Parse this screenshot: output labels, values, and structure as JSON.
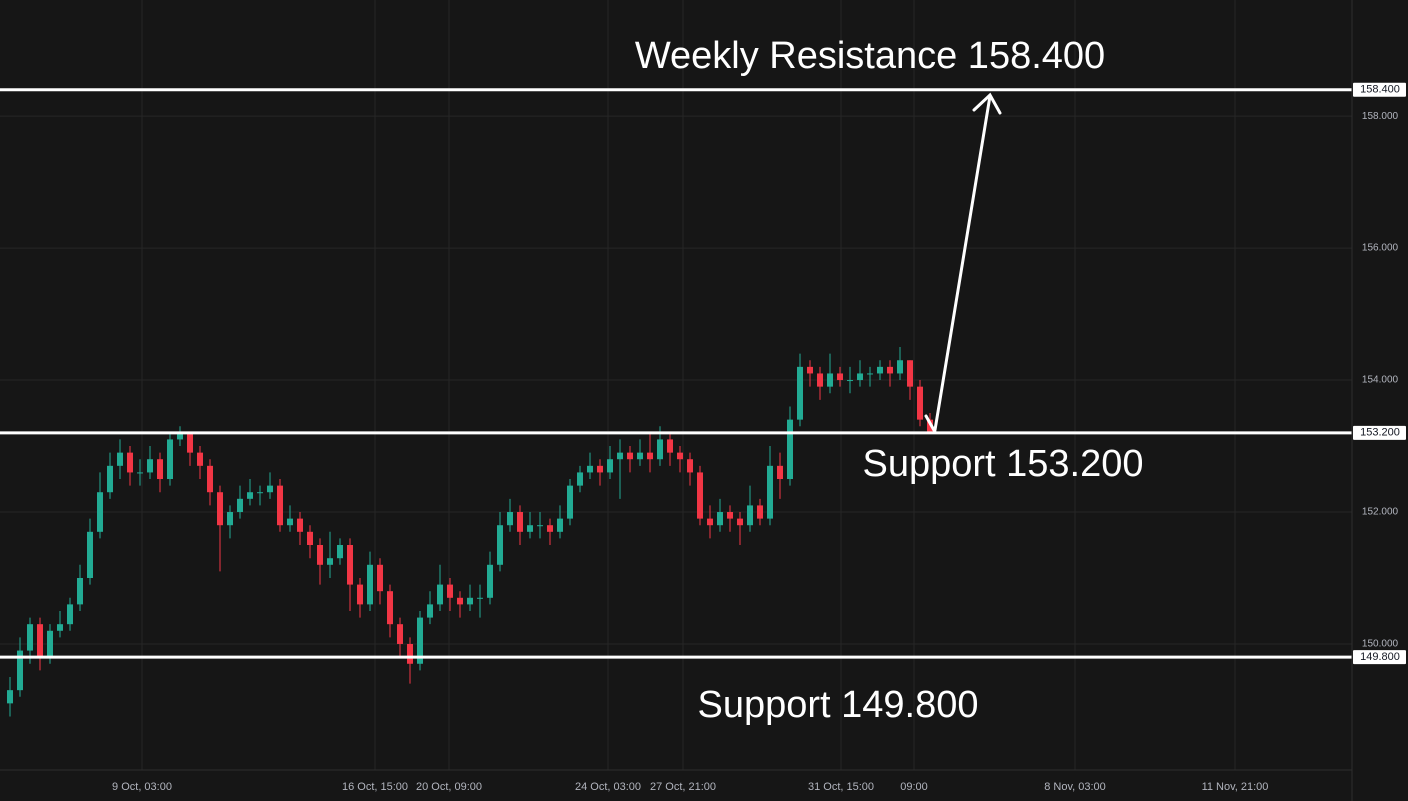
{
  "chart_data": {
    "type": "candlestick",
    "open": [
      149.1,
      149.3,
      149.9,
      150.3,
      149.8,
      150.2,
      150.3,
      150.6,
      151.0,
      151.7,
      152.3,
      152.7,
      152.9,
      152.6,
      152.6,
      152.8,
      152.5,
      153.1,
      153.2,
      152.9,
      152.7,
      152.3,
      151.8,
      152.0,
      152.2,
      152.3,
      152.3,
      152.4,
      151.8,
      151.9,
      151.7,
      151.5,
      151.2,
      151.3,
      151.5,
      150.9,
      150.6,
      151.2,
      150.8,
      150.3,
      150.0,
      149.7,
      150.4,
      150.6,
      150.9,
      150.7,
      150.6,
      150.7,
      150.7,
      151.2,
      151.8,
      152.0,
      151.7,
      151.8,
      151.8,
      151.7,
      151.9,
      152.4,
      152.6,
      152.7,
      152.6,
      152.8,
      152.9,
      152.8,
      152.9,
      152.8,
      153.1,
      152.9,
      152.8,
      152.6,
      151.9,
      151.8,
      152.0,
      151.9,
      151.8,
      152.1,
      151.9,
      152.7,
      152.5,
      153.4,
      154.2,
      154.1,
      153.9,
      154.1,
      154.0,
      154.0,
      154.1,
      154.1,
      154.2,
      154.1,
      154.3,
      153.9,
      153.4
    ],
    "high": [
      149.5,
      150.1,
      150.4,
      150.4,
      150.3,
      150.5,
      150.7,
      151.2,
      151.9,
      152.6,
      152.9,
      153.1,
      153.0,
      152.8,
      153.0,
      152.9,
      153.2,
      153.3,
      153.2,
      153.0,
      152.8,
      152.4,
      152.1,
      152.4,
      152.5,
      152.4,
      152.6,
      152.5,
      152.1,
      152.0,
      151.8,
      151.6,
      151.7,
      151.6,
      151.6,
      151.0,
      151.4,
      151.3,
      150.9,
      150.4,
      150.1,
      150.5,
      150.8,
      151.2,
      151.0,
      150.8,
      150.9,
      150.9,
      151.4,
      152.0,
      152.2,
      152.1,
      152.0,
      152.0,
      151.9,
      152.1,
      152.5,
      152.7,
      152.9,
      152.8,
      153.0,
      153.1,
      153.0,
      153.1,
      153.2,
      153.3,
      153.2,
      153.0,
      152.9,
      152.7,
      152.1,
      152.2,
      152.1,
      152.0,
      152.4,
      152.2,
      153.0,
      152.9,
      153.6,
      154.4,
      154.3,
      154.2,
      154.4,
      154.2,
      154.2,
      154.3,
      154.2,
      154.3,
      154.3,
      154.5,
      154.3,
      154.0,
      153.5
    ],
    "low": [
      148.9,
      149.2,
      149.7,
      149.6,
      149.7,
      150.1,
      150.2,
      150.5,
      150.9,
      151.6,
      152.2,
      152.5,
      152.4,
      152.4,
      152.5,
      152.3,
      152.4,
      153.0,
      152.7,
      152.5,
      152.1,
      151.1,
      151.6,
      151.9,
      152.1,
      152.1,
      152.2,
      151.7,
      151.7,
      151.5,
      151.3,
      150.9,
      151.0,
      151.2,
      150.5,
      150.4,
      150.5,
      150.6,
      150.1,
      149.8,
      149.4,
      149.6,
      150.3,
      150.5,
      150.5,
      150.4,
      150.5,
      150.4,
      150.6,
      151.1,
      151.7,
      151.5,
      151.6,
      151.6,
      151.5,
      151.6,
      151.8,
      152.3,
      152.5,
      152.4,
      152.5,
      152.2,
      152.6,
      152.7,
      152.6,
      152.7,
      152.7,
      152.6,
      152.4,
      151.8,
      151.6,
      151.7,
      151.7,
      151.5,
      151.7,
      151.8,
      151.8,
      152.2,
      152.4,
      153.3,
      153.9,
      153.7,
      153.8,
      153.9,
      153.8,
      153.9,
      153.9,
      154.0,
      153.9,
      154.0,
      153.7,
      153.3,
      153.2
    ],
    "close": [
      149.3,
      149.9,
      150.3,
      149.8,
      150.2,
      150.3,
      150.6,
      151.0,
      151.7,
      152.3,
      152.7,
      152.9,
      152.6,
      152.6,
      152.8,
      152.5,
      153.1,
      153.2,
      152.9,
      152.7,
      152.3,
      151.8,
      152.0,
      152.2,
      152.3,
      152.3,
      152.4,
      151.8,
      151.9,
      151.7,
      151.5,
      151.2,
      151.3,
      151.5,
      150.9,
      150.6,
      151.2,
      150.8,
      150.3,
      150.0,
      149.7,
      150.4,
      150.6,
      150.9,
      150.7,
      150.6,
      150.7,
      150.7,
      151.2,
      151.8,
      152.0,
      151.7,
      151.8,
      151.8,
      151.7,
      151.9,
      152.4,
      152.6,
      152.7,
      152.6,
      152.8,
      152.9,
      152.8,
      152.9,
      152.8,
      153.1,
      152.9,
      152.8,
      152.6,
      151.9,
      151.8,
      152.0,
      151.9,
      151.8,
      152.1,
      151.9,
      152.7,
      152.5,
      153.4,
      154.2,
      154.1,
      153.9,
      154.1,
      154.0,
      154.0,
      154.1,
      154.1,
      154.2,
      154.1,
      154.3,
      153.9,
      153.4,
      153.2
    ],
    "up_color": "#22ab94",
    "down_color": "#f23645",
    "xlim": [
      -1,
      134.2
    ],
    "xticks": [
      {
        "value": 13.2,
        "label": "9 Oct, 03:00"
      },
      {
        "value": 36.5,
        "label": "16 Oct, 15:00"
      },
      {
        "value": 43.9,
        "label": "20 Oct, 09:00"
      },
      {
        "value": 59.8,
        "label": "24 Oct, 03:00"
      },
      {
        "value": 67.3,
        "label": "27 Oct, 21:00"
      },
      {
        "value": 83.1,
        "label": "31 Oct, 15:00"
      },
      {
        "value": 90.4,
        "label": "09:00"
      },
      {
        "value": 106.5,
        "label": "8 Nov, 03:00"
      },
      {
        "value": 122.5,
        "label": "11 Nov, 21:00"
      }
    ],
    "ylim": [
      148.09,
      159.76
    ],
    "yticks": [
      {
        "value": 150,
        "label": "150.000"
      },
      {
        "value": 152,
        "label": "152.000"
      },
      {
        "value": 154,
        "label": "154.000"
      },
      {
        "value": 156,
        "label": "156.000"
      },
      {
        "value": 158,
        "label": "158.000"
      }
    ],
    "grid": true,
    "levels": [
      {
        "value": 158.4,
        "label": "158.400",
        "annotation": "Weekly Resistance 158.400"
      },
      {
        "value": 153.2,
        "label": "153.200",
        "annotation": "Support 153.200"
      },
      {
        "value": 149.8,
        "label": "149.800",
        "annotation": "Support 149.800"
      }
    ]
  }
}
